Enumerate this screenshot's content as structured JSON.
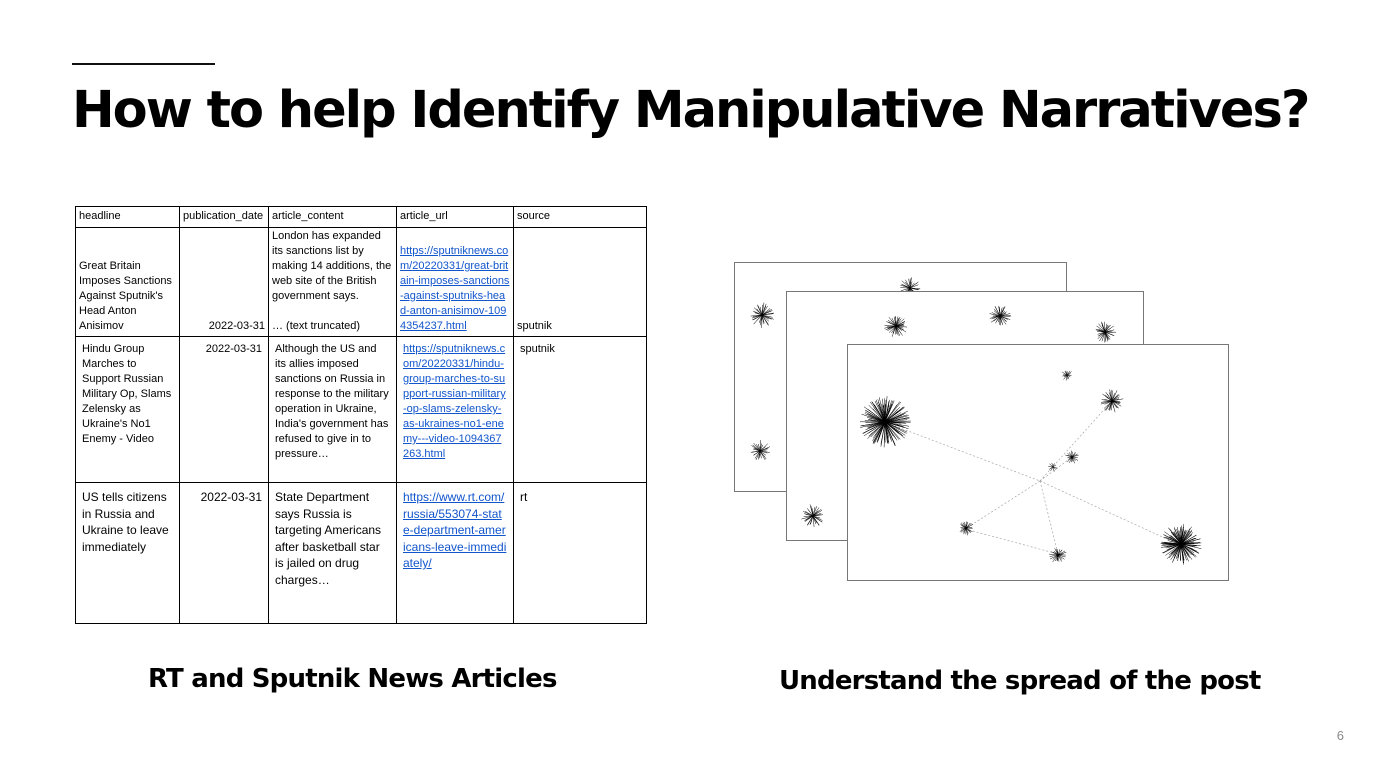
{
  "slide": {
    "title": "How to help Identify Manipulative Narratives?",
    "page_number": "6"
  },
  "table": {
    "headers": [
      "headline",
      "publication_date",
      "article_content",
      "article_url",
      "source"
    ],
    "rows": [
      {
        "headline": "Great Britain Imposes Sanctions Against Sputnik's Head Anton Anisimov",
        "publication_date": "2022-03-31",
        "article_content": "London has expanded its sanctions list by making 14 additions, the web site of the British government says.",
        "article_content_note": "… (text truncated)",
        "article_url": "https://sputniknews.com/20220331/great-britain-imposes-sanctions-against-sputniks-head-anton-anisimov-1094354237.html",
        "source": "sputnik"
      },
      {
        "headline": "Hindu Group Marches to Support Russian Military Op, Slams Zelensky as Ukraine's No1 Enemy - Video",
        "publication_date": "2022-03-31",
        "article_content": "Although the US and its allies imposed sanctions on Russia in response to the military operation in Ukraine, India's government has refused to give in to pressure…",
        "article_url": "https://sputniknews.com/20220331/hindu-group-marches-to-support-russian-military-op-slams-zelensky-as-ukraines-no1-enemy---video-1094367263.html",
        "source": "sputnik"
      },
      {
        "headline": "US tells citizens in Russia and Ukraine to leave immediately",
        "publication_date": "2022-03-31",
        "article_content": "State Department says Russia is targeting Americans after basketball star is jailed on drug charges…",
        "article_url": "https://www.rt.com/russia/553074-state-department-americans-leave-immediately/",
        "source": "rt"
      }
    ]
  },
  "captions": {
    "left": "RT and Sputnik News Articles",
    "right": "Understand the spread of the post"
  },
  "colors": {
    "link": "#1155cc",
    "card_border": "#777777",
    "page_number": "#8a8a8a"
  }
}
